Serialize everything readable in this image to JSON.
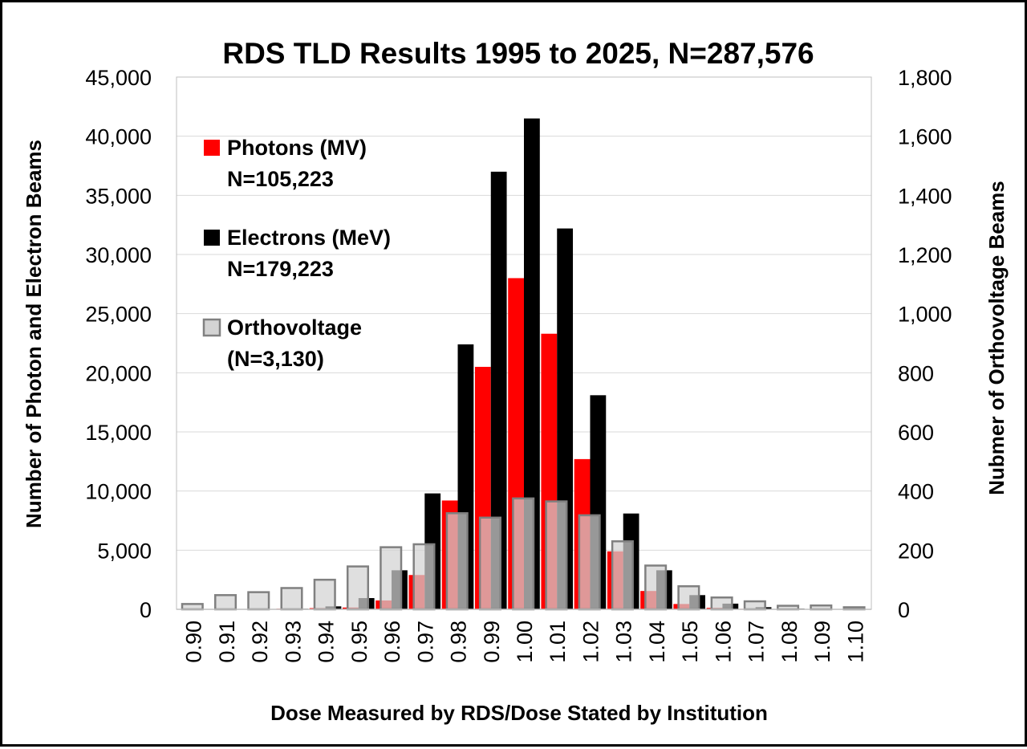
{
  "chart_data": {
    "type": "bar",
    "title": "RDS TLD Results 1995 to 2025, N=287,576",
    "xlabel": "Dose Measured by RDS/Dose Stated by Institution",
    "ylabel": "Number of Photon and Electron Beams",
    "y2label": "Nubmer of Orthovoltage Beams",
    "categories": [
      "0.90",
      "0.91",
      "0.92",
      "0.93",
      "0.94",
      "0.95",
      "0.96",
      "0.97",
      "0.98",
      "0.99",
      "1.00",
      "1.01",
      "1.02",
      "1.03",
      "1.04",
      "1.05",
      "1.06",
      "1.07",
      "1.08",
      "1.09",
      "1.10"
    ],
    "ylim": [
      0,
      45000
    ],
    "y2lim": [
      0,
      1800
    ],
    "yticks": [
      "0",
      "5,000",
      "10,000",
      "15,000",
      "20,000",
      "25,000",
      "30,000",
      "35,000",
      "40,000",
      "45,000"
    ],
    "y2ticks": [
      "0",
      "200",
      "400",
      "600",
      "800",
      "1,000",
      "1,200",
      "1,400",
      "1,600",
      "1,800"
    ],
    "grid": true,
    "legend_position": "top-left",
    "series": [
      {
        "name": "Photons (MV)",
        "legend_sub": "N=105,223",
        "axis": "left",
        "color": "#ff0000",
        "values": [
          0,
          0,
          0,
          50,
          100,
          150,
          750,
          2900,
          9200,
          20500,
          28000,
          23300,
          12700,
          4900,
          1550,
          450,
          120,
          40,
          10,
          0,
          0
        ]
      },
      {
        "name": "Electrons (MeV)",
        "legend_sub": "N=179,223",
        "axis": "left",
        "color": "#000000",
        "values": [
          0,
          0,
          0,
          50,
          250,
          950,
          3300,
          9800,
          22400,
          37000,
          41500,
          32200,
          18100,
          8100,
          3300,
          1200,
          480,
          180,
          60,
          20,
          0
        ]
      },
      {
        "name": "Orthovoltage",
        "legend_sub": "(N=3,130)",
        "axis": "right",
        "color": "#d3d3d3",
        "edge_color": "#808080",
        "values": [
          18,
          48,
          58,
          72,
          100,
          145,
          210,
          220,
          325,
          310,
          375,
          365,
          318,
          230,
          148,
          78,
          40,
          27,
          12,
          13,
          7
        ]
      }
    ]
  }
}
